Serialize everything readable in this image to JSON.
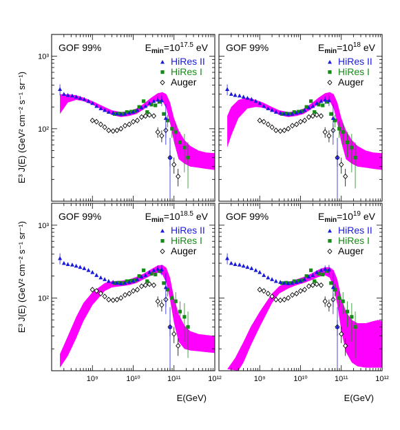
{
  "colors": {
    "band": "#ff00ff",
    "hires2": "#1a1ad9",
    "hires1": "#168a16",
    "auger": "#000000"
  },
  "y_axis_label": "E³ J(E) (GeV² cm⁻² s⁻¹ sr⁻¹)",
  "x_axis_label": "E(GeV)",
  "chart_data": [
    {
      "type": "scatter",
      "panel": "top-left",
      "title": "GOF 99%",
      "emin_label": {
        "base": "E",
        "sub": "min",
        "eq": "=10",
        "exp": "17.5",
        "unit": " eV"
      },
      "xscale": "log",
      "yscale": "log",
      "xlim": [
        100000000.0,
        1000000000000.0
      ],
      "ylim": [
        10,
        2000
      ],
      "xticks_shown": false,
      "yticks": [
        "10³",
        "10²"
      ],
      "legend": {
        "placement": "top-right",
        "entries": [
          "HiRes II",
          "HiRes I",
          "Auger"
        ]
      },
      "band_upper": [
        [
          160000000.0,
          300
        ],
        [
          250000000.0,
          300
        ],
        [
          400000000.0,
          290
        ],
        [
          600000000.0,
          270
        ],
        [
          1000000000.0,
          240
        ],
        [
          2000000000.0,
          200
        ],
        [
          3000000000.0,
          180
        ],
        [
          5000000000.0,
          170
        ],
        [
          8000000000.0,
          175
        ],
        [
          12000000000.0,
          190
        ],
        [
          18000000000.0,
          220
        ],
        [
          28000000000.0,
          270
        ],
        [
          40000000000.0,
          310
        ],
        [
          52000000000.0,
          320
        ],
        [
          65000000000.0,
          300
        ],
        [
          80000000000.0,
          230
        ],
        [
          100000000000.0,
          140
        ],
        [
          130000000000.0,
          95
        ],
        [
          180000000000.0,
          70
        ],
        [
          250000000000.0,
          58
        ],
        [
          400000000000.0,
          50
        ],
        [
          600000000000.0,
          47
        ],
        [
          1000000000000.0,
          46
        ]
      ],
      "band_lower": [
        [
          160000000.0,
          160
        ],
        [
          250000000.0,
          230
        ],
        [
          400000000.0,
          250
        ],
        [
          600000000.0,
          240
        ],
        [
          1000000000.0,
          215
        ],
        [
          2000000000.0,
          175
        ],
        [
          3000000000.0,
          155
        ],
        [
          5000000000.0,
          145
        ],
        [
          8000000000.0,
          150
        ],
        [
          12000000000.0,
          160
        ],
        [
          18000000000.0,
          185
        ],
        [
          28000000000.0,
          220
        ],
        [
          40000000000.0,
          250
        ],
        [
          52000000000.0,
          240
        ],
        [
          65000000000.0,
          190
        ],
        [
          80000000000.0,
          120
        ],
        [
          100000000000.0,
          65
        ],
        [
          130000000000.0,
          38
        ],
        [
          180000000000.0,
          33
        ],
        [
          250000000000.0,
          30
        ],
        [
          400000000000.0,
          29
        ],
        [
          600000000000.0,
          28
        ],
        [
          1000000000000.0,
          27
        ]
      ]
    },
    {
      "type": "scatter",
      "panel": "top-right",
      "title": "GOF 99%",
      "emin_label": {
        "base": "E",
        "sub": "min",
        "eq": "=10",
        "exp": "18",
        "unit": " eV"
      },
      "xscale": "log",
      "yscale": "log",
      "xlim": [
        100000000.0,
        1000000000000.0
      ],
      "ylim": [
        10,
        2000
      ],
      "xticks_shown": false,
      "yticks": [],
      "legend": {
        "placement": "top-right",
        "entries": [
          "HiRes II",
          "HiRes I",
          "Auger"
        ]
      },
      "band_upper": [
        [
          160000000.0,
          150
        ],
        [
          200000000.0,
          200
        ],
        [
          300000000.0,
          250
        ],
        [
          500000000.0,
          270
        ],
        [
          800000000.0,
          250
        ],
        [
          1200000000.0,
          230
        ],
        [
          2000000000.0,
          200
        ],
        [
          3000000000.0,
          180
        ],
        [
          5000000000.0,
          170
        ],
        [
          8000000000.0,
          175
        ],
        [
          12000000000.0,
          190
        ],
        [
          18000000000.0,
          220
        ],
        [
          28000000000.0,
          270
        ],
        [
          40000000000.0,
          310
        ],
        [
          52000000000.0,
          320
        ],
        [
          65000000000.0,
          300
        ],
        [
          80000000000.0,
          230
        ],
        [
          100000000000.0,
          140
        ],
        [
          130000000000.0,
          95
        ],
        [
          180000000000.0,
          70
        ],
        [
          250000000000.0,
          58
        ],
        [
          400000000000.0,
          50
        ],
        [
          600000000000.0,
          47
        ],
        [
          1000000000000.0,
          46
        ]
      ],
      "band_lower": [
        [
          160000000.0,
          55
        ],
        [
          200000000.0,
          80
        ],
        [
          300000000.0,
          140
        ],
        [
          500000000.0,
          190
        ],
        [
          800000000.0,
          200
        ],
        [
          1200000000.0,
          195
        ],
        [
          2000000000.0,
          175
        ],
        [
          3000000000.0,
          155
        ],
        [
          5000000000.0,
          145
        ],
        [
          8000000000.0,
          150
        ],
        [
          12000000000.0,
          160
        ],
        [
          18000000000.0,
          185
        ],
        [
          28000000000.0,
          220
        ],
        [
          40000000000.0,
          250
        ],
        [
          52000000000.0,
          240
        ],
        [
          65000000000.0,
          190
        ],
        [
          80000000000.0,
          120
        ],
        [
          100000000000.0,
          65
        ],
        [
          130000000000.0,
          38
        ],
        [
          180000000000.0,
          33
        ],
        [
          250000000000.0,
          30
        ],
        [
          400000000000.0,
          29
        ],
        [
          600000000000.0,
          28
        ],
        [
          1000000000000.0,
          27
        ]
      ]
    },
    {
      "type": "scatter",
      "panel": "bottom-left",
      "title": "GOF 99%",
      "emin_label": {
        "base": "E",
        "sub": "min",
        "eq": "=10",
        "exp": "18.5",
        "unit": " eV"
      },
      "xscale": "log",
      "yscale": "log",
      "xlim": [
        100000000.0,
        1000000000000.0
      ],
      "ylim": [
        10,
        2000
      ],
      "xticks": [
        "10⁹",
        "10¹⁰",
        "10¹¹",
        "10¹²"
      ],
      "yticks": [
        "10³",
        "10²"
      ],
      "legend": {
        "placement": "top-right",
        "entries": [
          "HiRes II",
          "HiRes I",
          "Auger"
        ]
      },
      "band_upper": [
        [
          160000000.0,
          17
        ],
        [
          250000000.0,
          30
        ],
        [
          400000000.0,
          55
        ],
        [
          600000000.0,
          85
        ],
        [
          1000000000.0,
          120
        ],
        [
          2000000000.0,
          160
        ],
        [
          3000000000.0,
          170
        ],
        [
          5000000000.0,
          172
        ],
        [
          8000000000.0,
          180
        ],
        [
          12000000000.0,
          195
        ],
        [
          18000000000.0,
          215
        ],
        [
          28000000000.0,
          250
        ],
        [
          40000000000.0,
          280
        ],
        [
          52000000000.0,
          285
        ],
        [
          65000000000.0,
          260
        ],
        [
          80000000000.0,
          190
        ],
        [
          100000000000.0,
          100
        ],
        [
          130000000000.0,
          60
        ],
        [
          180000000000.0,
          42
        ],
        [
          250000000000.0,
          35
        ],
        [
          400000000000.0,
          32
        ],
        [
          600000000000.0,
          31
        ],
        [
          1000000000000.0,
          30
        ]
      ],
      "band_lower": [
        [
          160000000.0,
          11
        ],
        [
          250000000.0,
          16
        ],
        [
          400000000.0,
          28
        ],
        [
          600000000.0,
          48
        ],
        [
          1000000000.0,
          80
        ],
        [
          2000000000.0,
          125
        ],
        [
          3000000000.0,
          140
        ],
        [
          5000000000.0,
          145
        ],
        [
          8000000000.0,
          150
        ],
        [
          12000000000.0,
          160
        ],
        [
          18000000000.0,
          180
        ],
        [
          28000000000.0,
          205
        ],
        [
          40000000000.0,
          225
        ],
        [
          52000000000.0,
          210
        ],
        [
          65000000000.0,
          160
        ],
        [
          80000000000.0,
          95
        ],
        [
          100000000000.0,
          45
        ],
        [
          130000000000.0,
          25
        ],
        [
          180000000000.0,
          20
        ],
        [
          250000000000.0,
          19
        ],
        [
          400000000000.0,
          18.5
        ],
        [
          600000000000.0,
          18
        ],
        [
          1000000000000.0,
          17.5
        ]
      ]
    },
    {
      "type": "scatter",
      "panel": "bottom-right",
      "title": "GOF 99%",
      "emin_label": {
        "base": "E",
        "sub": "min",
        "eq": "=10",
        "exp": "19",
        "unit": " eV"
      },
      "xscale": "log",
      "yscale": "log",
      "xlim": [
        100000000.0,
        1000000000000.0
      ],
      "ylim": [
        10,
        2000
      ],
      "xticks": [
        "10⁹",
        "10¹⁰",
        "10¹¹",
        "10¹²"
      ],
      "yticks": [],
      "legend": {
        "placement": "top-right",
        "entries": [
          "HiRes II",
          "HiRes I",
          "Auger"
        ]
      },
      "band_upper": [
        [
          160000000.0,
          10.5
        ],
        [
          250000000.0,
          15
        ],
        [
          400000000.0,
          25
        ],
        [
          600000000.0,
          40
        ],
        [
          1000000000.0,
          65
        ],
        [
          2000000000.0,
          115
        ],
        [
          3000000000.0,
          145
        ],
        [
          5000000000.0,
          165
        ],
        [
          8000000000.0,
          180
        ],
        [
          12000000000.0,
          195
        ],
        [
          18000000000.0,
          215
        ],
        [
          28000000000.0,
          245
        ],
        [
          40000000000.0,
          265
        ],
        [
          52000000000.0,
          265
        ],
        [
          65000000000.0,
          240
        ],
        [
          80000000000.0,
          180
        ],
        [
          100000000000.0,
          100
        ],
        [
          130000000000.0,
          65
        ],
        [
          180000000000.0,
          50
        ],
        [
          250000000000.0,
          45
        ],
        [
          400000000000.0,
          45
        ],
        [
          600000000000.0,
          48
        ],
        [
          800000000000.0,
          50
        ],
        [
          1000000000000.0,
          48
        ]
      ],
      "band_lower": [
        [
          300000000.0,
          10
        ],
        [
          400000000.0,
          13
        ],
        [
          600000000.0,
          22
        ],
        [
          1000000000.0,
          40
        ],
        [
          2000000000.0,
          85
        ],
        [
          3000000000.0,
          115
        ],
        [
          5000000000.0,
          135
        ],
        [
          8000000000.0,
          150
        ],
        [
          12000000000.0,
          160
        ],
        [
          18000000000.0,
          175
        ],
        [
          28000000000.0,
          195
        ],
        [
          40000000000.0,
          205
        ],
        [
          52000000000.0,
          190
        ],
        [
          65000000000.0,
          140
        ],
        [
          80000000000.0,
          80
        ],
        [
          100000000000.0,
          35
        ],
        [
          130000000000.0,
          18
        ],
        [
          180000000000.0,
          13
        ],
        [
          250000000000.0,
          11.5
        ],
        [
          400000000000.0,
          11
        ],
        [
          600000000000.0,
          11
        ],
        [
          1000000000000.0,
          11
        ]
      ]
    }
  ],
  "series": {
    "hires2": {
      "name": "HiRes II",
      "points": [
        [
          160000000.0,
          350,
          60
        ],
        [
          200000000.0,
          300,
          0
        ],
        [
          250000000.0,
          290,
          0
        ],
        [
          320000000.0,
          285,
          0
        ],
        [
          400000000.0,
          275,
          0
        ],
        [
          500000000.0,
          265,
          0
        ],
        [
          630000000.0,
          255,
          0
        ],
        [
          800000000.0,
          240,
          0
        ],
        [
          1000000000.0,
          225,
          0
        ],
        [
          1260000000.0,
          205,
          0
        ],
        [
          1600000000.0,
          190,
          0
        ],
        [
          2000000000.0,
          180,
          0
        ],
        [
          2500000000.0,
          170,
          0
        ],
        [
          3200000000.0,
          165,
          0
        ],
        [
          4000000000.0,
          160,
          0
        ],
        [
          5000000000.0,
          158,
          0
        ],
        [
          6300000000.0,
          160,
          0
        ],
        [
          8000000000.0,
          165,
          0
        ],
        [
          10000000000.0,
          170,
          0
        ],
        [
          12600000000.0,
          180,
          0
        ],
        [
          16000000000.0,
          195,
          0
        ],
        [
          20000000000.0,
          205,
          0
        ],
        [
          25000000000.0,
          225,
          0
        ],
        [
          32000000000.0,
          240,
          0
        ],
        [
          40000000000.0,
          250,
          30
        ],
        [
          50000000000.0,
          245,
          40
        ],
        [
          63000000000.0,
          140,
          80
        ],
        [
          80000000000.0,
          40,
          35
        ]
      ]
    },
    "hires1": {
      "name": "HiRes I",
      "points": [
        [
          3500000000.0,
          160,
          0
        ],
        [
          4500000000.0,
          162,
          0
        ],
        [
          5600000000.0,
          160,
          0
        ],
        [
          7000000000.0,
          170,
          0
        ],
        [
          8900000000.0,
          172,
          0
        ],
        [
          11000000000.0,
          175,
          0
        ],
        [
          14000000000.0,
          200,
          0
        ],
        [
          18000000000.0,
          240,
          0
        ],
        [
          22000000000.0,
          170,
          0
        ],
        [
          28000000000.0,
          215,
          0
        ],
        [
          35000000000.0,
          210,
          0
        ],
        [
          45000000000.0,
          235,
          0
        ],
        [
          56000000000.0,
          160,
          0
        ],
        [
          70000000000.0,
          130,
          25
        ],
        [
          89000000000.0,
          100,
          25
        ],
        [
          110000000000.0,
          90,
          30
        ],
        [
          140000000000.0,
          65,
          25
        ],
        [
          180000000000.0,
          55,
          30
        ],
        [
          220000000000.0,
          40,
          25
        ]
      ]
    },
    "auger": {
      "name": "Auger",
      "points": [
        [
          1000000000.0,
          130,
          0
        ],
        [
          1260000000.0,
          125,
          0
        ],
        [
          1600000000.0,
          115,
          0
        ],
        [
          2000000000.0,
          105,
          0
        ],
        [
          2500000000.0,
          95,
          0
        ],
        [
          3200000000.0,
          93,
          0
        ],
        [
          4000000000.0,
          95,
          0
        ],
        [
          5000000000.0,
          100,
          0
        ],
        [
          6300000000.0,
          110,
          0
        ],
        [
          8000000000.0,
          115,
          0
        ],
        [
          10000000000.0,
          125,
          0
        ],
        [
          12600000000.0,
          130,
          0
        ],
        [
          16000000000.0,
          145,
          0
        ],
        [
          20000000000.0,
          150,
          0
        ],
        [
          25000000000.0,
          155,
          0
        ],
        [
          32000000000.0,
          150,
          0
        ],
        [
          40000000000.0,
          90,
          15
        ],
        [
          50000000000.0,
          80,
          15
        ],
        [
          63000000000.0,
          95,
          20
        ],
        [
          80000000000.0,
          40,
          10
        ],
        [
          100000000000.0,
          32,
          8
        ],
        [
          126000000000.0,
          22,
          6
        ]
      ]
    }
  }
}
